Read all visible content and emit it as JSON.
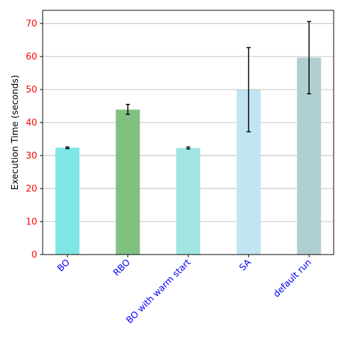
{
  "chart_data": {
    "type": "bar",
    "title": "",
    "xlabel": "",
    "ylabel": "Execution Time (seconds)",
    "ylim": [
      0,
      74
    ],
    "yticks": [
      0,
      10,
      20,
      30,
      40,
      50,
      60,
      70
    ],
    "grid": "y",
    "categories": [
      "BO",
      "RBO",
      "BO with warm start",
      "SA",
      "default run"
    ],
    "values": [
      32.4,
      43.9,
      32.3,
      49.9,
      59.7
    ],
    "errors": [
      [
        32.1,
        32.6
      ],
      [
        42.5,
        45.5
      ],
      [
        32.0,
        32.6
      ],
      [
        37.2,
        62.7
      ],
      [
        48.7,
        70.6
      ]
    ],
    "bar_colors": [
      "#7fe5e5",
      "#80c080",
      "#a1e5e0",
      "#c2e5f3",
      "#b0cfd1"
    ],
    "ytick_color": "#ff0000",
    "xtick_color": "#0000ff"
  }
}
